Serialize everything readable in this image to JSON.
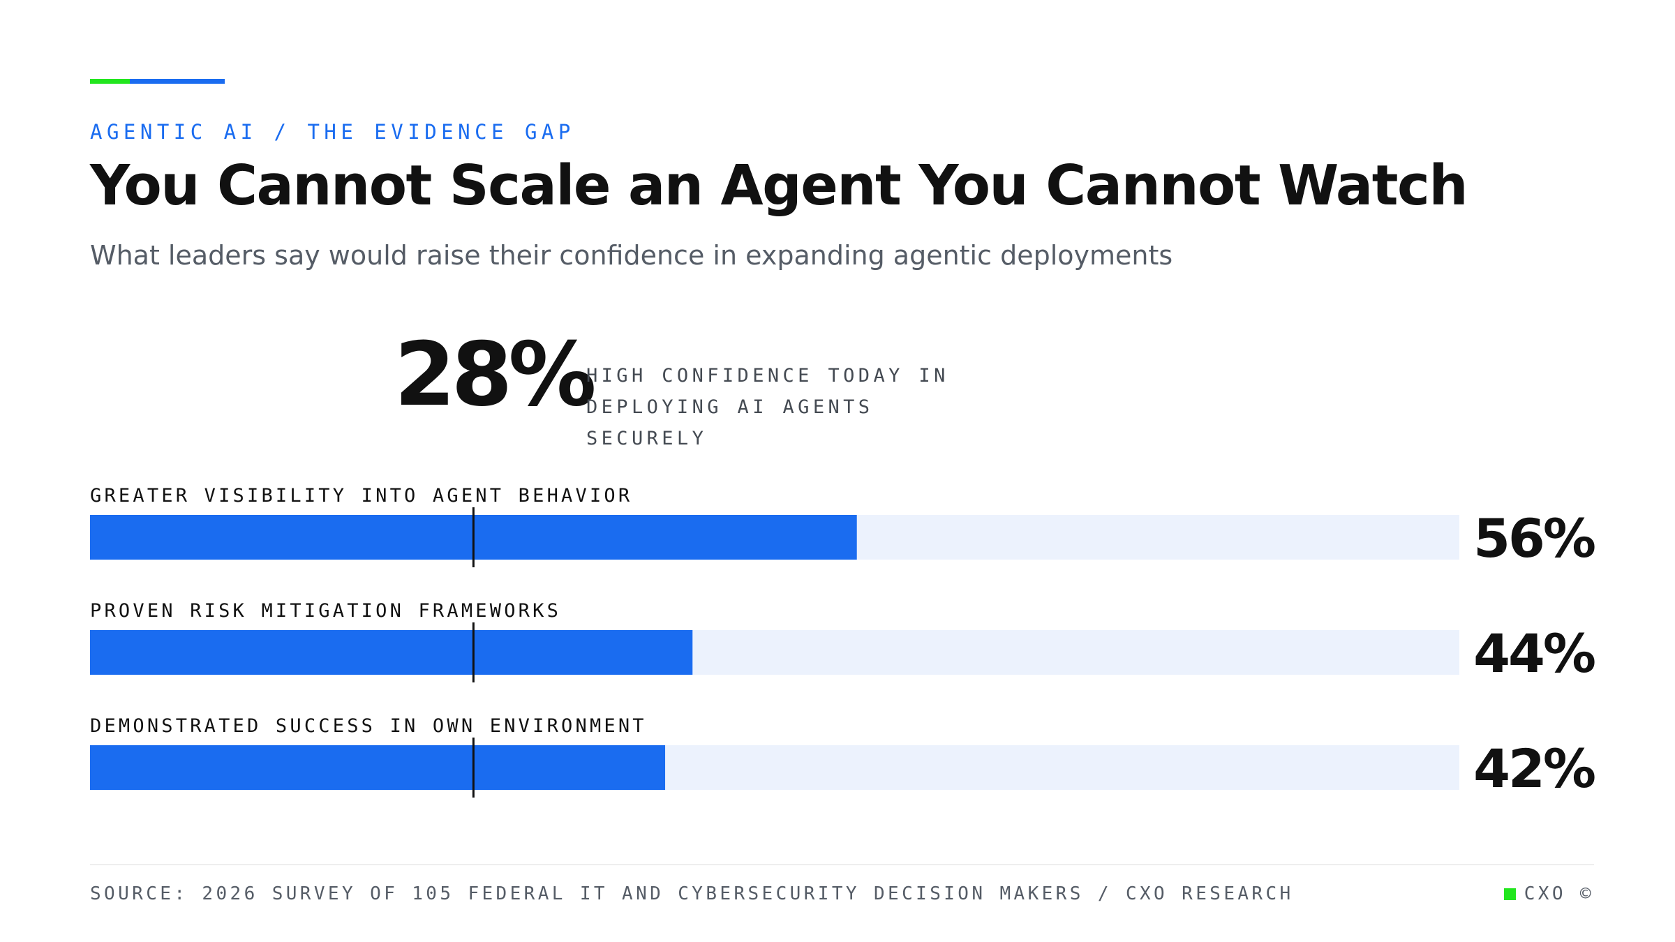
{
  "header": {
    "eyebrow": "AGENTIC AI / THE EVIDENCE GAP",
    "title": "You Cannot Scale an Agent You Cannot Watch",
    "subtitle": "What leaders say would raise their confidence in expanding agentic deployments"
  },
  "kpi": {
    "value": "28%",
    "label_line1": "HIGH CONFIDENCE TODAY IN",
    "label_line2": "DEPLOYING AI AGENTS SECURELY"
  },
  "chart_data": {
    "type": "bar",
    "orientation": "horizontal",
    "categories": [
      "GREATER VISIBILITY INTO AGENT BEHAVIOR",
      "PROVEN RISK MITIGATION FRAMEWORKS",
      "DEMONSTRATED SUCCESS IN OWN ENVIRONMENT"
    ],
    "values": [
      56,
      44,
      42
    ],
    "value_labels": [
      "56%",
      "44%",
      "42%"
    ],
    "xlim": [
      0,
      100
    ],
    "reference_line": 28,
    "grid": false,
    "colors": {
      "bar": "#1a6cf0",
      "track": "#ecf2fd",
      "marker": "#111111"
    }
  },
  "footer": {
    "source": "SOURCE: 2026 SURVEY OF 105 FEDERAL IT AND CYBERSECURITY DECISION MAKERS / CXO RESEARCH",
    "brand": "CXO ©"
  },
  "colors": {
    "accent_green": "#22e61e",
    "accent_blue": "#1a6cf0"
  }
}
